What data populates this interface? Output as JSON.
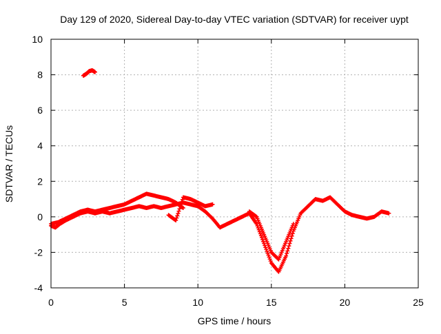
{
  "chart_data": {
    "type": "scatter",
    "title": "Day 129 of 2020, Sidereal Day-to-day VTEC variation (SDTVAR) for receiver uypt",
    "xlabel": "GPS time / hours",
    "ylabel": "SDTVAR / TECUs",
    "xlim": [
      0,
      25
    ],
    "ylim": [
      -4,
      10
    ],
    "grid": true,
    "marker": "+",
    "xticks": [
      {
        "value": 0,
        "label": "0"
      },
      {
        "value": 5,
        "label": "5"
      },
      {
        "value": 10,
        "label": "10"
      },
      {
        "value": 15,
        "label": "15"
      },
      {
        "value": 20,
        "label": "20"
      },
      {
        "value": 25,
        "label": "25"
      }
    ],
    "yticks": [
      {
        "value": -4,
        "label": "-4"
      },
      {
        "value": -2,
        "label": "-2"
      },
      {
        "value": 0,
        "label": "0"
      },
      {
        "value": 2,
        "label": "2"
      },
      {
        "value": 4,
        "label": "4"
      },
      {
        "value": 6,
        "label": "6"
      },
      {
        "value": 8,
        "label": "8"
      },
      {
        "value": 10,
        "label": "10"
      }
    ],
    "series": [
      {
        "name": "SDTVAR",
        "color": "#ff0000",
        "tracks": [
          {
            "x": [
              0.0,
              0.3,
              0.6,
              1.0,
              1.5,
              2.0,
              2.5,
              3.0,
              3.5,
              4.0,
              4.5,
              5.0,
              5.5,
              6.0,
              6.5,
              7.0,
              7.5,
              8.0,
              8.5,
              9.0,
              9.5,
              10.0,
              10.5,
              11.0,
              11.5,
              12.0,
              12.5,
              13.0,
              13.5,
              14.0,
              14.5,
              15.0,
              15.5,
              16.0,
              16.5,
              17.0,
              17.5,
              18.0,
              18.5,
              19.0,
              19.5,
              20.0,
              20.5,
              21.0,
              21.5,
              22.0,
              22.5,
              23.0
            ],
            "y": [
              -0.5,
              -0.6,
              -0.4,
              -0.2,
              0.0,
              0.2,
              0.3,
              0.2,
              0.3,
              0.2,
              0.3,
              0.4,
              0.5,
              0.6,
              0.5,
              0.6,
              0.5,
              0.6,
              0.7,
              0.8,
              0.7,
              0.6,
              0.3,
              -0.1,
              -0.6,
              -0.4,
              -0.2,
              0.0,
              0.2,
              -0.4,
              -1.5,
              -2.6,
              -3.1,
              -2.2,
              -0.8,
              0.2,
              0.6,
              1.0,
              0.9,
              1.1,
              0.7,
              0.3,
              0.1,
              0.0,
              -0.1,
              0.0,
              0.3,
              0.2
            ]
          },
          {
            "x": [
              0.0,
              0.5,
              1.0,
              1.5,
              2.0,
              2.5,
              3.0,
              3.5,
              4.0,
              4.5,
              5.0,
              5.5,
              6.0,
              6.5,
              7.0,
              7.5,
              8.0,
              8.5,
              9.0
            ],
            "y": [
              -0.4,
              -0.3,
              -0.1,
              0.1,
              0.3,
              0.4,
              0.3,
              0.4,
              0.5,
              0.6,
              0.7,
              0.9,
              1.1,
              1.3,
              1.2,
              1.1,
              1.0,
              0.8,
              0.5
            ]
          },
          {
            "x": [
              8.0,
              8.5,
              9.0,
              9.5,
              10.0,
              10.5,
              11.0
            ],
            "y": [
              0.1,
              -0.2,
              1.1,
              1.0,
              0.8,
              0.6,
              0.7
            ]
          },
          {
            "x": [
              13.5,
              14.0,
              14.5,
              15.0,
              15.5,
              16.0,
              16.5
            ],
            "y": [
              0.3,
              0.0,
              -1.0,
              -2.0,
              -2.4,
              -1.4,
              -0.4
            ]
          },
          {
            "x": [
              2.2,
              2.4,
              2.6,
              2.8,
              3.0
            ],
            "y": [
              7.95,
              8.05,
              8.2,
              8.25,
              8.15
            ]
          }
        ]
      }
    ]
  }
}
